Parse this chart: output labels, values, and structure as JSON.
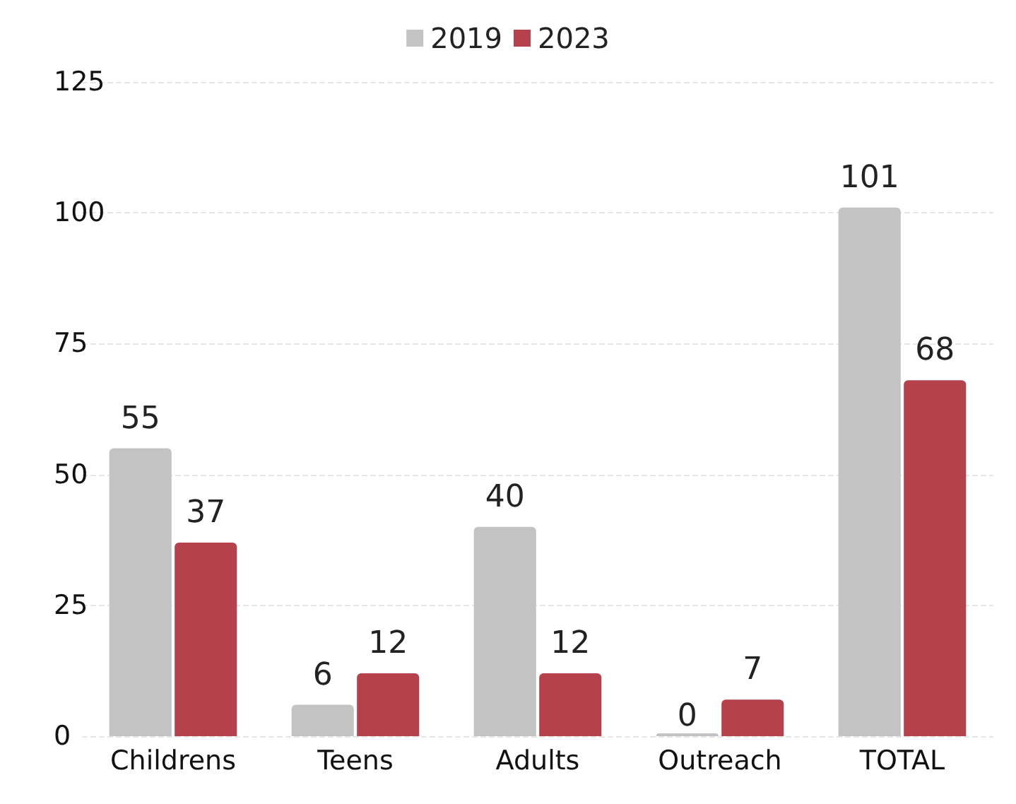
{
  "chart_data": {
    "type": "bar",
    "categories": [
      "Childrens",
      "Teens",
      "Adults",
      "Outreach",
      "TOTAL"
    ],
    "series": [
      {
        "name": "2019",
        "color": "#c3c3c3",
        "values": [
          55,
          6,
          40,
          0,
          101
        ]
      },
      {
        "name": "2023",
        "color": "#b5414c",
        "values": [
          37,
          12,
          12,
          7,
          68
        ]
      }
    ],
    "ylim": [
      0,
      125
    ],
    "yticks": [
      0,
      25,
      50,
      75,
      100,
      125
    ],
    "grid": "y",
    "legend": "top",
    "data_labels": true
  }
}
